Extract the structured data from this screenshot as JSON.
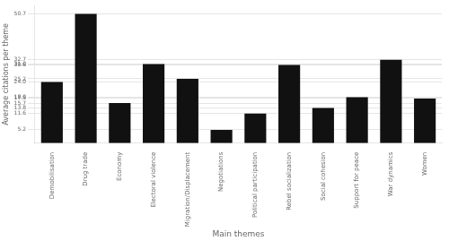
{
  "chart_data": {
    "type": "bar",
    "categories": [
      "Demobilisation",
      "Drug trade",
      "Economy",
      "Electoral violence",
      "Migration/Displacement",
      "Negotiations",
      "Political participation",
      "Rebel socialization",
      "Social cohesion",
      "Support for peace",
      "War dynamics",
      "Women"
    ],
    "values": [
      24.0,
      50.7,
      15.7,
      31.0,
      25.2,
      5.2,
      11.6,
      30.6,
      13.8,
      18.0,
      32.7,
      17.5
    ],
    "color": "#111111",
    "xlabel": "Main themes",
    "ylabel": "Average citations per theme",
    "ylim": [
      0,
      54.0
    ],
    "yticks": [
      5.2,
      11.6,
      13.8,
      15.7,
      17.5,
      {
        "value": 18.0,
        "label": "18.0"
      },
      {
        "value": 24.0,
        "label": "24.0"
      },
      25.2,
      30.6,
      {
        "value": 31.0,
        "label": "31.0"
      },
      32.7,
      50.7
    ],
    "grid": true
  }
}
